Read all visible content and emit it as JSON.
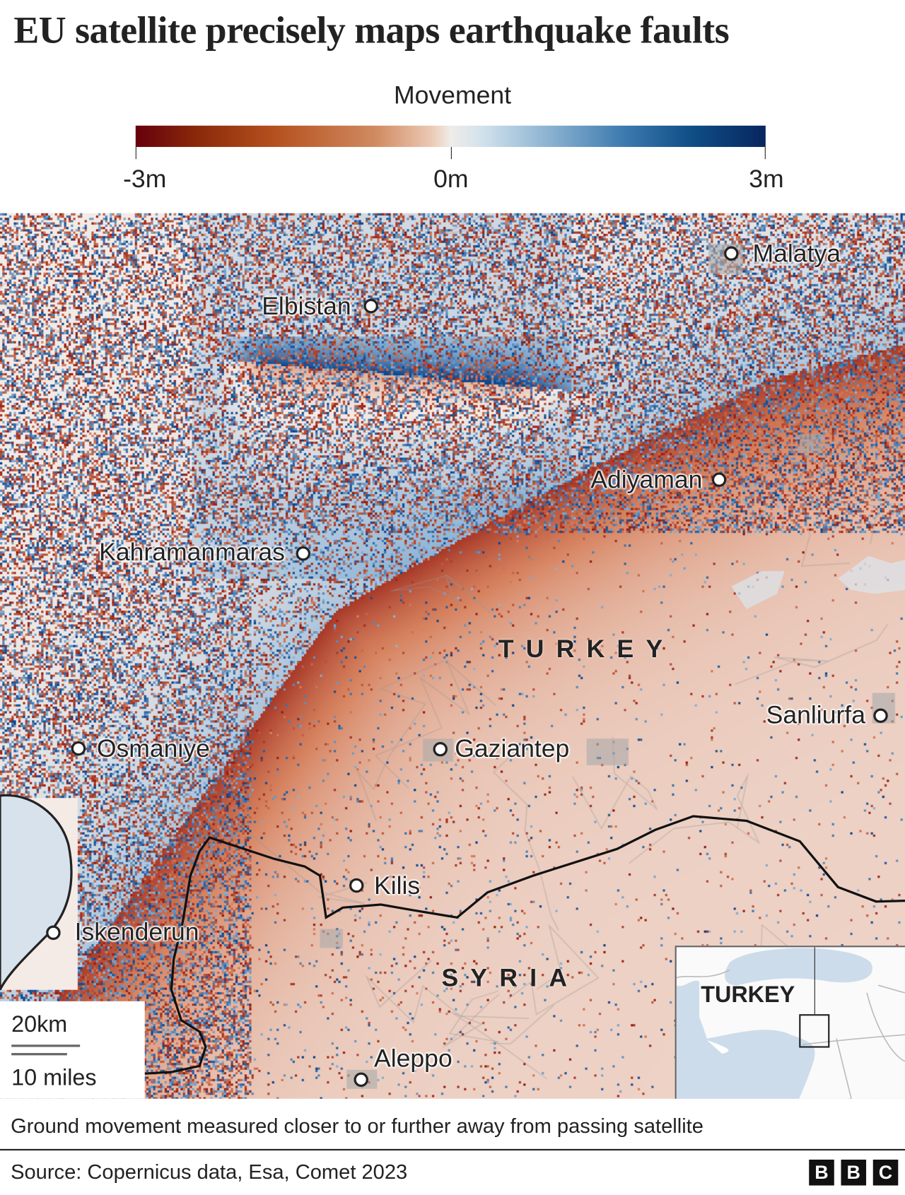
{
  "title": "EU satellite precisely maps earthquake faults",
  "legend": {
    "title": "Movement",
    "ticks": [
      "-3m",
      "0m",
      "3m"
    ],
    "range_m": [
      -3,
      3
    ],
    "colors": {
      "negative": "#67000d",
      "zero": "#f0ece8",
      "positive": "#08255f"
    }
  },
  "map": {
    "cities": [
      {
        "name": "Malatya"
      },
      {
        "name": "Elbistan"
      },
      {
        "name": "Adiyaman"
      },
      {
        "name": "Kahramanmaras"
      },
      {
        "name": "Sanliurfa"
      },
      {
        "name": "Osmaniye"
      },
      {
        "name": "Gaziantep"
      },
      {
        "name": "Kilis"
      },
      {
        "name": "Iskenderun"
      },
      {
        "name": "Aleppo"
      }
    ],
    "countries": [
      "TURKEY",
      "SYRIA"
    ],
    "scale": {
      "km": "20km",
      "miles": "10 miles"
    },
    "inset": {
      "label": "TURKEY"
    }
  },
  "caption": "Ground movement measured closer to or further away from passing satellite",
  "source": "Source: Copernicus data, Esa, Comet 2023",
  "logo": [
    "B",
    "B",
    "C"
  ]
}
